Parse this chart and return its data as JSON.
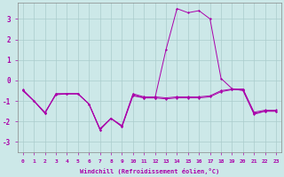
{
  "background_color": "#cce8e8",
  "grid_color": "#aacccc",
  "line_color": "#aa00aa",
  "xlim": [
    -0.5,
    23.5
  ],
  "ylim": [
    -3.5,
    3.8
  ],
  "xticks": [
    0,
    1,
    2,
    3,
    4,
    5,
    6,
    7,
    8,
    9,
    10,
    11,
    12,
    13,
    14,
    15,
    16,
    17,
    18,
    19,
    20,
    21,
    22,
    23
  ],
  "yticks": [
    -3,
    -2,
    -1,
    0,
    1,
    2,
    3
  ],
  "xlabel": "Windchill (Refroidissement éolien,°C)",
  "x": [
    0,
    1,
    2,
    3,
    4,
    5,
    6,
    7,
    8,
    9,
    10,
    11,
    12,
    13,
    14,
    15,
    16,
    17,
    18,
    19,
    20,
    21,
    22,
    23
  ],
  "s1": [
    -0.5,
    -1.0,
    -1.6,
    -0.65,
    -0.65,
    -0.65,
    -1.15,
    -2.4,
    -1.85,
    -2.25,
    -0.7,
    -0.85,
    -0.85,
    -0.9,
    -0.85,
    -0.85,
    -0.85,
    -0.8,
    -0.55,
    -0.45,
    -0.45,
    -1.6,
    -1.5,
    -1.5
  ],
  "s2": [
    -0.45,
    -1.0,
    -1.55,
    -0.7,
    -0.65,
    -0.65,
    -1.15,
    -2.35,
    -1.85,
    -2.2,
    -0.65,
    -0.8,
    -0.8,
    -0.85,
    -0.8,
    -0.8,
    -0.8,
    -0.75,
    -0.5,
    -0.42,
    -0.42,
    -1.55,
    -1.45,
    -1.45
  ],
  "s3": [
    -0.5,
    -1.0,
    -1.6,
    -0.65,
    -0.65,
    -0.65,
    -1.15,
    -2.4,
    -1.85,
    -2.25,
    -0.75,
    -0.85,
    -0.85,
    1.5,
    3.5,
    3.3,
    3.4,
    3.0,
    0.1,
    -0.4,
    -0.5,
    -1.65,
    -1.5,
    -1.5
  ]
}
